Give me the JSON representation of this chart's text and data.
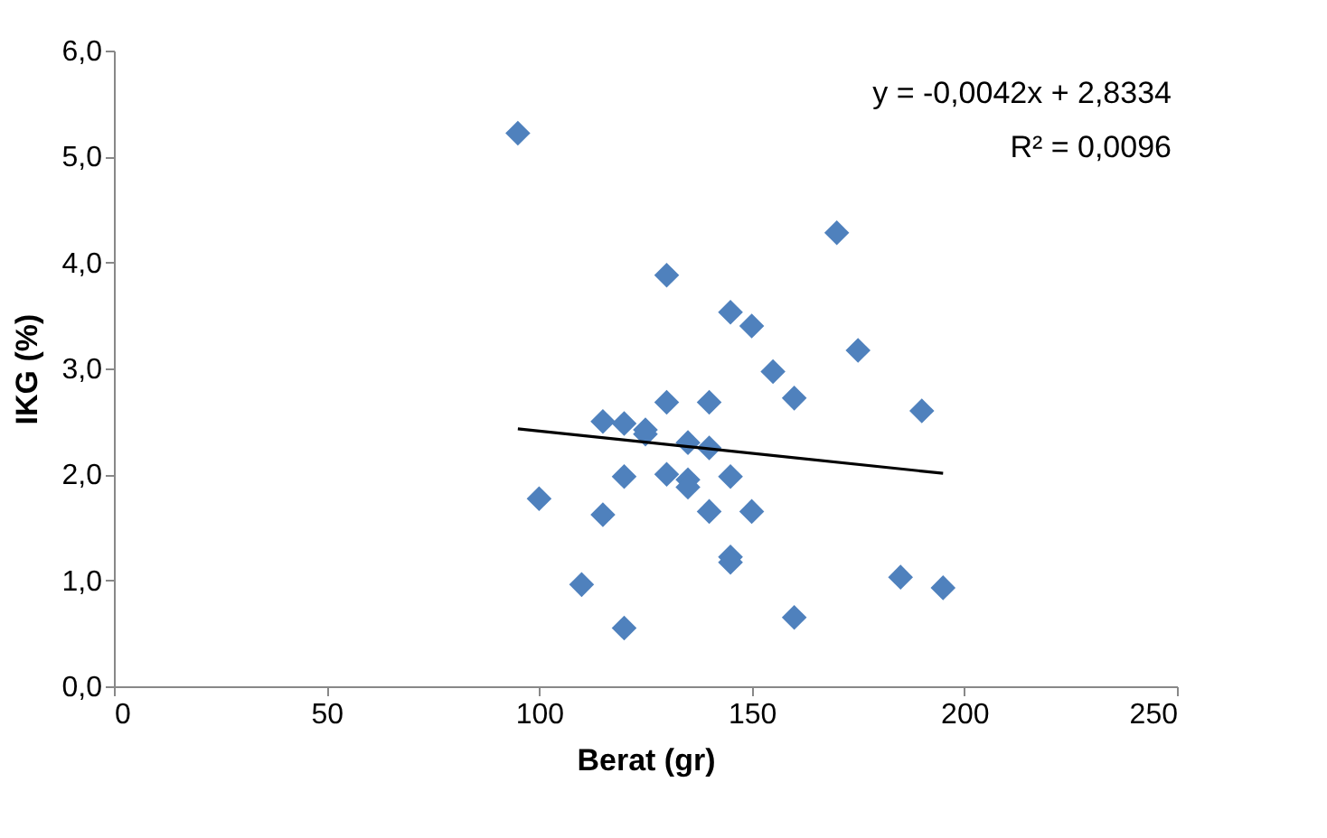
{
  "chart_data": {
    "type": "scatter",
    "xlabel": "Berat (gr)",
    "ylabel": "IKG (%)",
    "marker": "diamond",
    "grid": false,
    "xlim": [
      0,
      250
    ],
    "xticks": [
      0,
      50,
      100,
      150,
      200,
      250
    ],
    "ylim": [
      0,
      6
    ],
    "yticks": [
      {
        "value": 0,
        "label": "0,0"
      },
      {
        "value": 1,
        "label": "1,0"
      },
      {
        "value": 2,
        "label": "2,0"
      },
      {
        "value": 3,
        "label": "3,0"
      },
      {
        "value": 4,
        "label": "4,0"
      },
      {
        "value": 5,
        "label": "5,0"
      },
      {
        "value": 6,
        "label": "6,0"
      }
    ],
    "annotations": [
      "y = -0,0042x + 2,8334",
      "R² = 0,0096"
    ],
    "series": [
      {
        "color": "#4f81bd",
        "x": [
          95,
          100,
          110,
          115,
          115,
          120,
          120,
          120,
          125,
          125,
          130,
          130,
          130,
          135,
          135,
          135,
          140,
          140,
          140,
          145,
          145,
          145,
          145,
          150,
          150,
          155,
          160,
          160,
          170,
          175,
          185,
          190,
          195
        ],
        "values": [
          5.22,
          1.77,
          0.96,
          1.62,
          2.5,
          0.55,
          2.48,
          1.98,
          2.42,
          2.38,
          3.88,
          2.68,
          2.0,
          2.3,
          1.95,
          1.88,
          2.68,
          2.25,
          1.65,
          3.53,
          1.98,
          1.22,
          1.17,
          3.4,
          1.65,
          2.97,
          2.72,
          0.65,
          4.28,
          3.17,
          1.03,
          2.6,
          0.93
        ]
      },
      {
        "type": "line",
        "color": "#000000",
        "marker": "none",
        "line_style": "solid",
        "x": [
          95,
          195
        ],
        "values": [
          2.43,
          2.01
        ]
      }
    ]
  }
}
